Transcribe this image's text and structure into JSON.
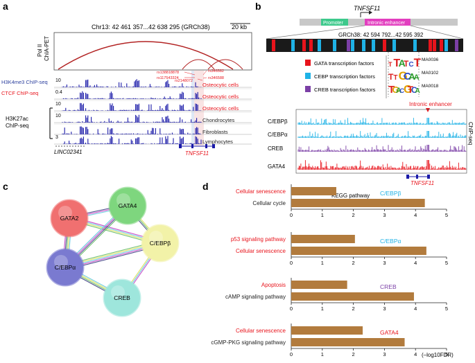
{
  "panel_a": {
    "label": "a",
    "locus": "Chr13: 42 461 357...42 638 295 (GRCh38)",
    "scale": "20 kb",
    "chia_label_1": "Pol II",
    "chia_label_2": "ChIA-PET",
    "tracks": [
      {
        "name": "H3K4me3 ChIP-seq",
        "scale": "10",
        "cell": "Osteocytic cells",
        "color": "#1a1aa8"
      },
      {
        "name": "CTCF ChIP-seq",
        "scale": "0.4",
        "cell": "Osteocytic cells",
        "color": "#1a1aa8"
      },
      {
        "name": "",
        "scale": "10",
        "cell": "Osteocytic cells",
        "color": "#1a1aa8"
      },
      {
        "name": "",
        "scale": "10",
        "cell": "Chondrocytes",
        "color": "#1a1aa8"
      },
      {
        "name": "",
        "scale": "",
        "cell": "Fibroblasts",
        "color": "#1a1aa8"
      },
      {
        "name": "",
        "scale": "3",
        "cell": "Lymphocytes",
        "color": "#1a1aa8"
      }
    ],
    "h3k27ac_1": "H3K27ac",
    "h3k27ac_2": "ChIP-seq",
    "snps": [
      "rs138818878",
      "rs117543324",
      "rs2148072",
      "rs346582",
      "rs346588"
    ],
    "gene_left": "LINC02341",
    "gene_right": "TNFSF11"
  },
  "panel_b": {
    "label": "b",
    "gene_title": "TNFSF11",
    "promoter": "Promoter",
    "enhancer": "Intronic enhancer",
    "seq_coord": "GRCh38: 42 594 792...42 595 392",
    "legend": [
      {
        "label": "GATA transcription factors",
        "motif": "MA0036",
        "color": "#e8141c"
      },
      {
        "label": "CEBP transcription factors",
        "motif": "MA0102",
        "color": "#1fb2e6"
      },
      {
        "label": "CREB transcription factors",
        "motif": "MA0018",
        "color": "#7b3fa6"
      }
    ],
    "tracks_marker": "Intronic enhancer",
    "tracks": [
      {
        "name": "C/EBPβ",
        "color": "#1fb2e6"
      },
      {
        "name": "C/EBPα",
        "color": "#1fb2e6"
      },
      {
        "name": "CREB",
        "color": "#7b3fa6"
      },
      {
        "name": "GATA4",
        "color": "#e8141c"
      }
    ],
    "chip_label": "ChIP-seq",
    "gene": "TNFSF11"
  },
  "panel_c": {
    "label": "c",
    "nodes": [
      {
        "id": "GATA2",
        "color": "#f07070"
      },
      {
        "id": "GATA4",
        "color": "#7ed67e"
      },
      {
        "id": "C/EBPβ",
        "color": "#f2f2a8"
      },
      {
        "id": "C/EBPα",
        "color": "#7a7ad0"
      },
      {
        "id": "CREB",
        "color": "#9ee6dc"
      }
    ]
  },
  "panel_d": {
    "label": "d",
    "chart_data": {
      "type": "bar",
      "title": "KEGG pathway",
      "xlabel": "(–log10FDR)",
      "xlim": [
        0,
        5
      ],
      "ticks": [
        "0",
        "1",
        "2",
        "3",
        "4",
        "5"
      ],
      "bar_color": "#b27b3d",
      "groups": [
        {
          "tf": "C/EBPβ",
          "tf_color": "#1fb2e6",
          "items": [
            {
              "label": "Cellular senescence",
              "value": 1.45,
              "label_color": "#e8141c"
            },
            {
              "label": "Cellular cycle",
              "value": 4.3,
              "label_color": "#222222"
            }
          ]
        },
        {
          "tf": "C/EBPα",
          "tf_color": "#1fb2e6",
          "items": [
            {
              "label": "p53 signaling pathway",
              "value": 2.05,
              "label_color": "#e8141c"
            },
            {
              "label": "Cellular senescence",
              "value": 4.35,
              "label_color": "#e8141c"
            }
          ]
        },
        {
          "tf": "CREB",
          "tf_color": "#7b3fa6",
          "items": [
            {
              "label": "Apoptosis",
              "value": 1.8,
              "label_color": "#e8141c"
            },
            {
              "label": "cAMP signaling pathway",
              "value": 3.95,
              "label_color": "#222222"
            }
          ]
        },
        {
          "tf": "GATA4",
          "tf_color": "#e8141c",
          "items": [
            {
              "label": "Cellular senescence",
              "value": 2.3,
              "label_color": "#e8141c"
            },
            {
              "label": "cGMP-PKG signaling pathway",
              "value": 3.65,
              "label_color": "#222222"
            }
          ]
        }
      ]
    }
  }
}
